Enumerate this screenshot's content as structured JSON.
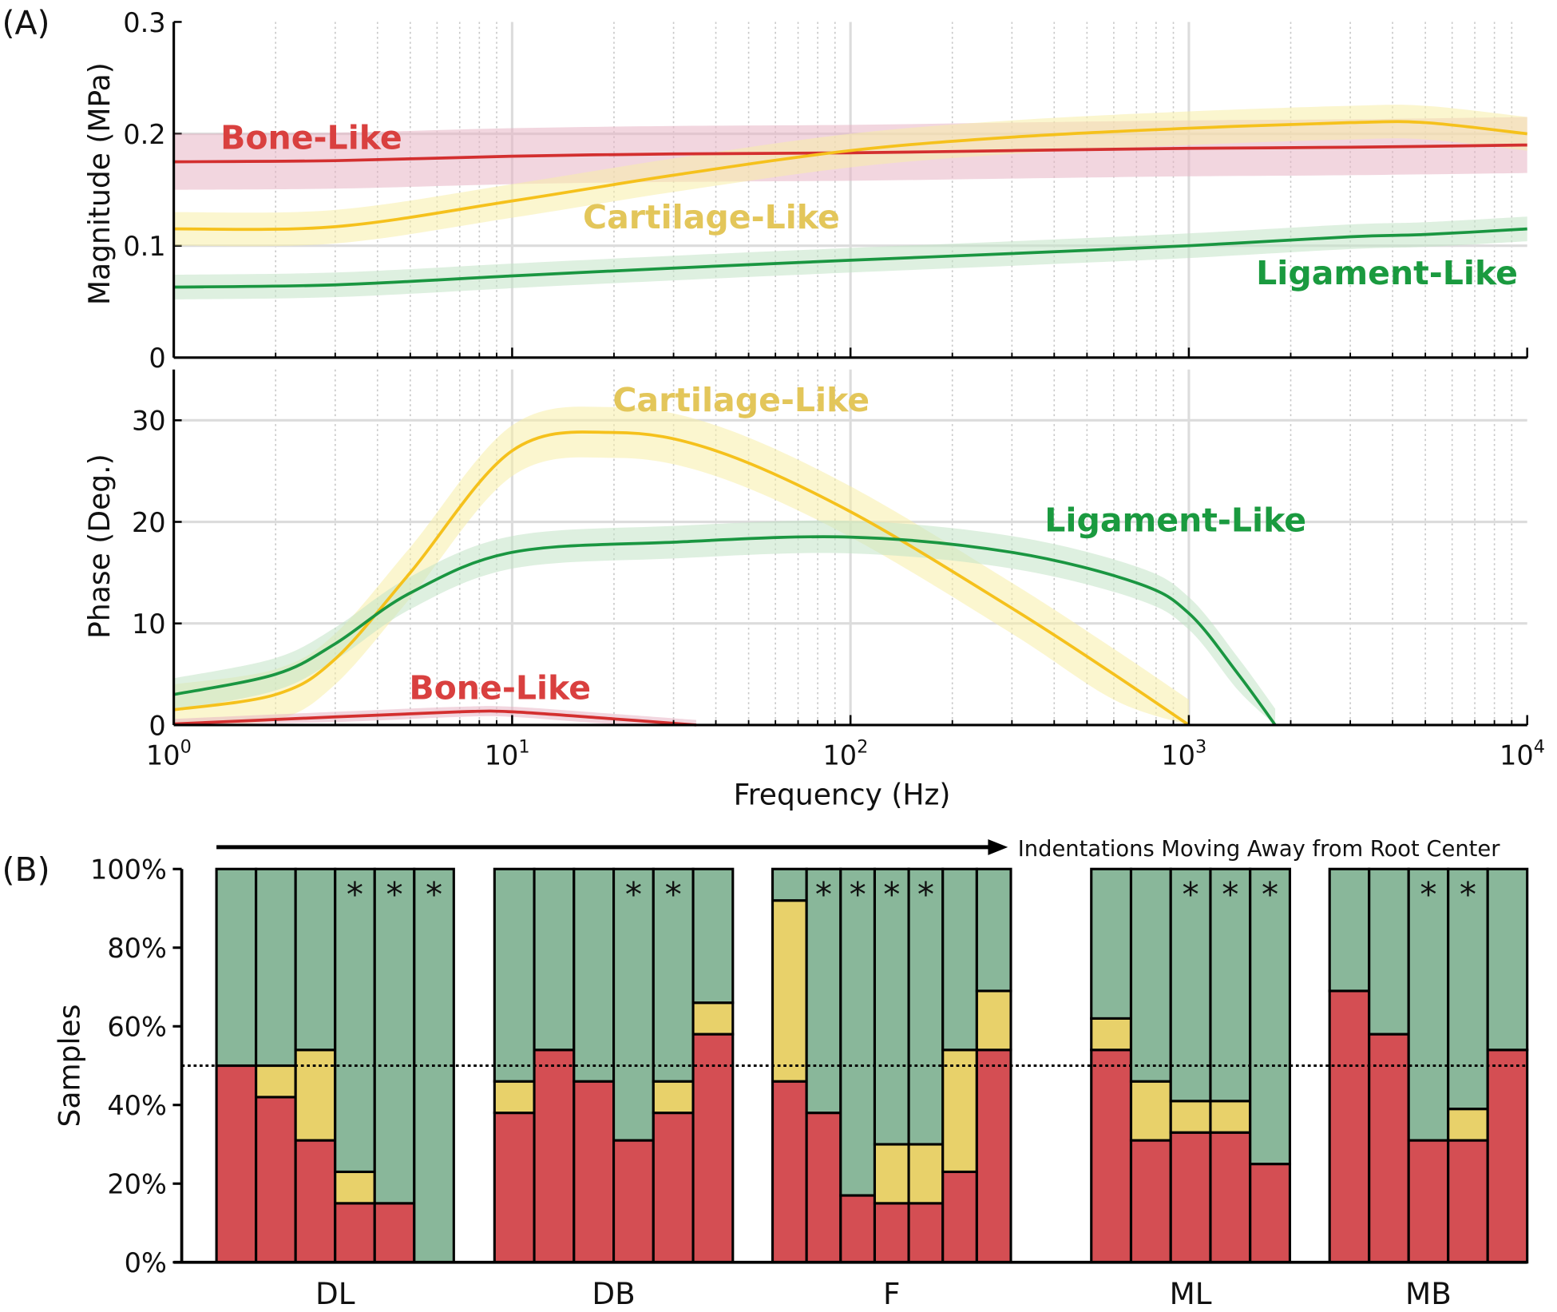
{
  "panel_labels": {
    "a": "(A)",
    "b": "(B)"
  },
  "chart_data": [
    {
      "type": "line",
      "id": "magnitude",
      "xscale": "log",
      "xlim": [
        1,
        10000
      ],
      "ylim": [
        0,
        0.3
      ],
      "ylabel": "Magnitude (MPa)",
      "yticks": [
        "0",
        "0.1",
        "0.2",
        "0.3"
      ],
      "ytick_values": [
        0,
        0.1,
        0.2,
        0.3
      ],
      "grid": true,
      "series": [
        {
          "name": "Bone-Like",
          "color": "#d32f2f",
          "label_color": "#d9403f",
          "band_color": "#e8b4c4",
          "x": [
            1,
            3,
            10,
            30,
            100,
            300,
            1000,
            3000,
            10000
          ],
          "y": [
            0.175,
            0.176,
            0.18,
            0.182,
            0.183,
            0.185,
            0.187,
            0.188,
            0.19
          ],
          "band": 0.025
        },
        {
          "name": "Cartilage-Like",
          "color": "#f5c11c",
          "label_color": "#e3c65a",
          "band_color": "#f8eea8",
          "x": [
            1,
            3,
            10,
            30,
            100,
            300,
            1000,
            3000,
            5000,
            10000
          ],
          "y": [
            0.115,
            0.117,
            0.14,
            0.163,
            0.185,
            0.197,
            0.205,
            0.21,
            0.21,
            0.2
          ],
          "band": 0.015
        },
        {
          "name": "Ligament-Like",
          "color": "#1a9641",
          "label_color": "#1a9a3f",
          "band_color": "#c3e3c6",
          "x": [
            1,
            3,
            10,
            30,
            100,
            300,
            1000,
            3000,
            5000,
            10000
          ],
          "y": [
            0.063,
            0.065,
            0.073,
            0.08,
            0.087,
            0.093,
            0.1,
            0.108,
            0.11,
            0.115
          ],
          "band": 0.011
        }
      ]
    },
    {
      "type": "line",
      "id": "phase",
      "xscale": "log",
      "xlim": [
        1,
        10000
      ],
      "ylim": [
        0,
        35
      ],
      "xlabel": "Frequency (Hz)",
      "ylabel": "Phase (Deg.)",
      "yticks": [
        "0",
        "10",
        "20",
        "30"
      ],
      "ytick_values": [
        0,
        10,
        20,
        30
      ],
      "xticks": [
        {
          "base": "10",
          "exp": "0"
        },
        {
          "base": "10",
          "exp": "1"
        },
        {
          "base": "10",
          "exp": "2"
        },
        {
          "base": "10",
          "exp": "3"
        },
        {
          "base": "10",
          "exp": "4"
        }
      ],
      "grid": true,
      "series": [
        {
          "name": "Cartilage-Like",
          "color": "#f5c11c",
          "label_color": "#e3c65a",
          "band_color": "#f8eea8",
          "x": [
            1,
            2,
            3,
            5,
            10,
            20,
            40,
            100,
            300,
            600,
            1000
          ],
          "y": [
            1.5,
            3,
            6.5,
            15,
            27,
            28.8,
            27,
            21,
            11.5,
            5,
            0
          ],
          "band": 2.5
        },
        {
          "name": "Ligament-Like",
          "color": "#1a9641",
          "label_color": "#1a9a3f",
          "band_color": "#c3e3c6",
          "x": [
            1,
            2,
            3,
            5,
            10,
            30,
            100,
            300,
            700,
            1000,
            1400,
            1800
          ],
          "y": [
            3,
            5,
            8,
            13,
            17,
            18,
            18.5,
            17,
            14,
            11,
            5,
            0
          ],
          "band": 1.6
        },
        {
          "name": "Bone-Like",
          "color": "#d32f2f",
          "label_color": "#d9403f",
          "band_color": "#e8b4c4",
          "x": [
            1,
            3,
            7,
            10,
            20,
            35
          ],
          "y": [
            0.1,
            0.8,
            1.3,
            1.3,
            0.6,
            0
          ],
          "band": 0.5
        }
      ]
    },
    {
      "type": "bar",
      "id": "samples",
      "stacked": true,
      "ylabel": "Samples",
      "ylim": [
        0,
        100
      ],
      "yticks": [
        "0%",
        "20%",
        "40%",
        "60%",
        "80%",
        "100%"
      ],
      "ytick_values": [
        0,
        20,
        40,
        60,
        80,
        100
      ],
      "reference_line": 50,
      "annotation": "Indentations Moving Away from Root Center",
      "stack_order": [
        "Bone-Like",
        "Cartilage-Like",
        "Ligament-Like"
      ],
      "colors": {
        "Bone-Like": "#d44e53",
        "Cartilage-Like": "#e8d16a",
        "Ligament-Like": "#89b79a"
      },
      "star": "*",
      "groups": [
        {
          "name": "DL",
          "bars": [
            [
              50,
              0,
              50
            ],
            [
              42,
              8,
              50
            ],
            [
              31,
              23,
              46
            ],
            [
              15,
              8,
              77
            ],
            [
              15,
              0,
              85
            ],
            [
              0,
              0,
              100
            ]
          ],
          "stars": [
            false,
            false,
            false,
            true,
            true,
            true
          ]
        },
        {
          "name": "DB",
          "bars": [
            [
              38,
              8,
              54
            ],
            [
              54,
              0,
              46
            ],
            [
              46,
              0,
              54
            ],
            [
              31,
              0,
              69
            ],
            [
              38,
              8,
              54
            ],
            [
              58,
              8,
              34
            ]
          ],
          "stars": [
            false,
            false,
            false,
            true,
            true,
            false
          ]
        },
        {
          "name": "F",
          "bars": [
            [
              46,
              46,
              8
            ],
            [
              38,
              0,
              62
            ],
            [
              17,
              0,
              83
            ],
            [
              15,
              15,
              70
            ],
            [
              15,
              15,
              70
            ],
            [
              23,
              31,
              46
            ],
            [
              54,
              15,
              31
            ]
          ],
          "stars": [
            false,
            true,
            true,
            true,
            true,
            false,
            false
          ]
        },
        {
          "name": "ML",
          "bars": [
            [
              54,
              8,
              38
            ],
            [
              31,
              15,
              54
            ],
            [
              33,
              8,
              59
            ],
            [
              33,
              8,
              59
            ],
            [
              25,
              0,
              75
            ]
          ],
          "stars": [
            false,
            false,
            true,
            true,
            true
          ]
        },
        {
          "name": "MB",
          "bars": [
            [
              69,
              0,
              31
            ],
            [
              58,
              0,
              42
            ],
            [
              31,
              0,
              69
            ],
            [
              31,
              8,
              61
            ],
            [
              54,
              0,
              46
            ]
          ],
          "stars": [
            false,
            false,
            true,
            true,
            false
          ]
        }
      ]
    }
  ]
}
